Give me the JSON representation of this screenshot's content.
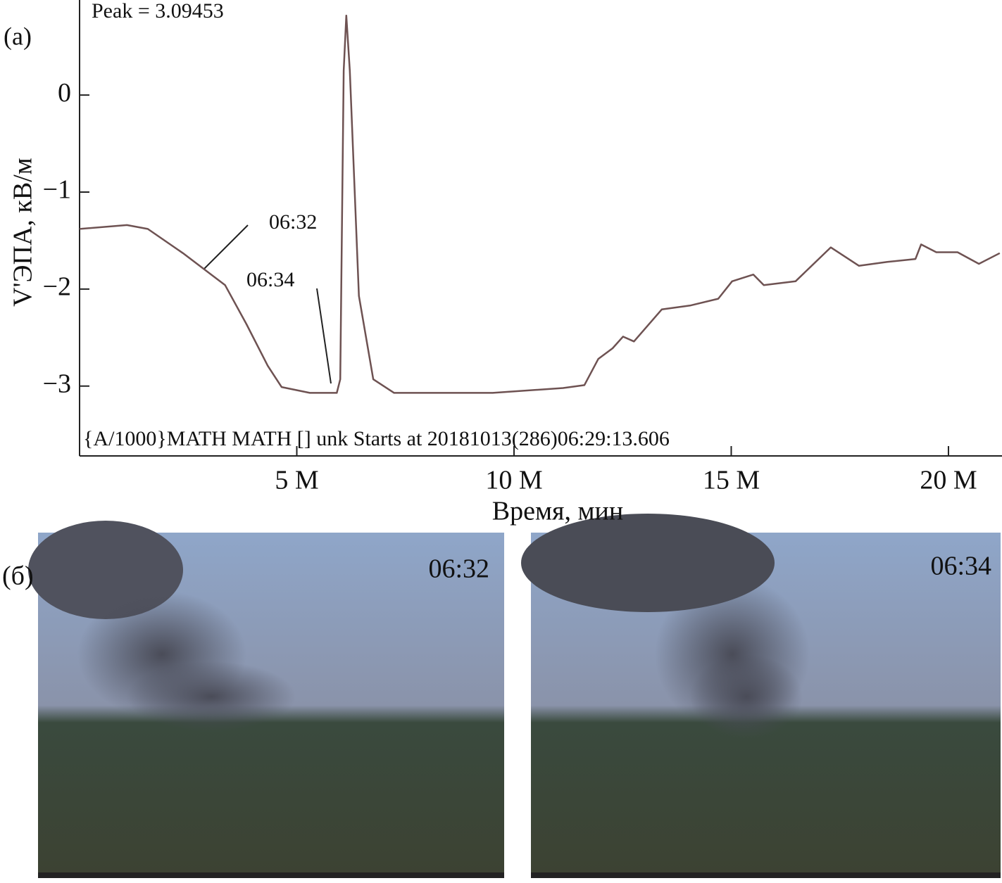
{
  "chart_data": {
    "type": "line",
    "panel_label": "(a)",
    "annotations": [
      "Peak = 3.09453",
      "06:32",
      "06:34",
      "{A/1000}MATH MATH [] unk Starts at 20181013(286)06:29:13.606"
    ],
    "x_label": "Время, мин",
    "y_label": "V'ЭПА, кВ/м",
    "x": [
      0,
      1.09,
      1.57,
      2.38,
      3.03,
      3.35,
      3.84,
      4.33,
      4.65,
      5.3,
      5.92,
      6.0,
      6.08,
      6.14,
      6.22,
      6.43,
      6.76,
      7.24,
      9.51,
      11.13,
      11.62,
      11.94,
      12.27,
      12.51,
      12.76,
      13.4,
      14.05,
      14.7,
      15.02,
      15.51,
      15.75,
      16.48,
      17.29,
      17.94,
      18.59,
      19.24,
      19.37,
      19.72,
      20.21,
      20.7,
      21.18
    ],
    "values": [
      -1.38,
      -1.34,
      -1.38,
      -1.63,
      -1.85,
      -1.96,
      -2.36,
      -2.79,
      -3.01,
      -3.07,
      -3.07,
      -2.93,
      0.25,
      0.82,
      0.25,
      -2.07,
      -2.93,
      -3.07,
      -3.07,
      -3.02,
      -2.99,
      -2.72,
      -2.61,
      -2.49,
      -2.54,
      -2.21,
      -2.17,
      -2.1,
      -1.92,
      -1.85,
      -1.96,
      -1.92,
      -1.57,
      -1.76,
      -1.72,
      -1.69,
      -1.54,
      -1.62,
      -1.62,
      -1.74,
      -1.63
    ],
    "color": "#6e5252",
    "xlim": [
      0,
      21.2
    ],
    "ylim": [
      -3.72,
      0.98
    ],
    "xticks": [
      {
        "value": 5,
        "label": "5 M"
      },
      {
        "value": 10,
        "label": "10 M"
      },
      {
        "value": 15,
        "label": "15 M"
      },
      {
        "value": 20,
        "label": "20 M"
      }
    ],
    "yticks": [
      0,
      {
        "value": -1,
        "label": "−1"
      },
      {
        "value": -2,
        "label": "−2"
      },
      {
        "value": -3,
        "label": "−3"
      }
    ],
    "grid": false
  },
  "photos": {
    "panel_label": "(б)",
    "times": [
      "06:32",
      "06:34"
    ]
  }
}
